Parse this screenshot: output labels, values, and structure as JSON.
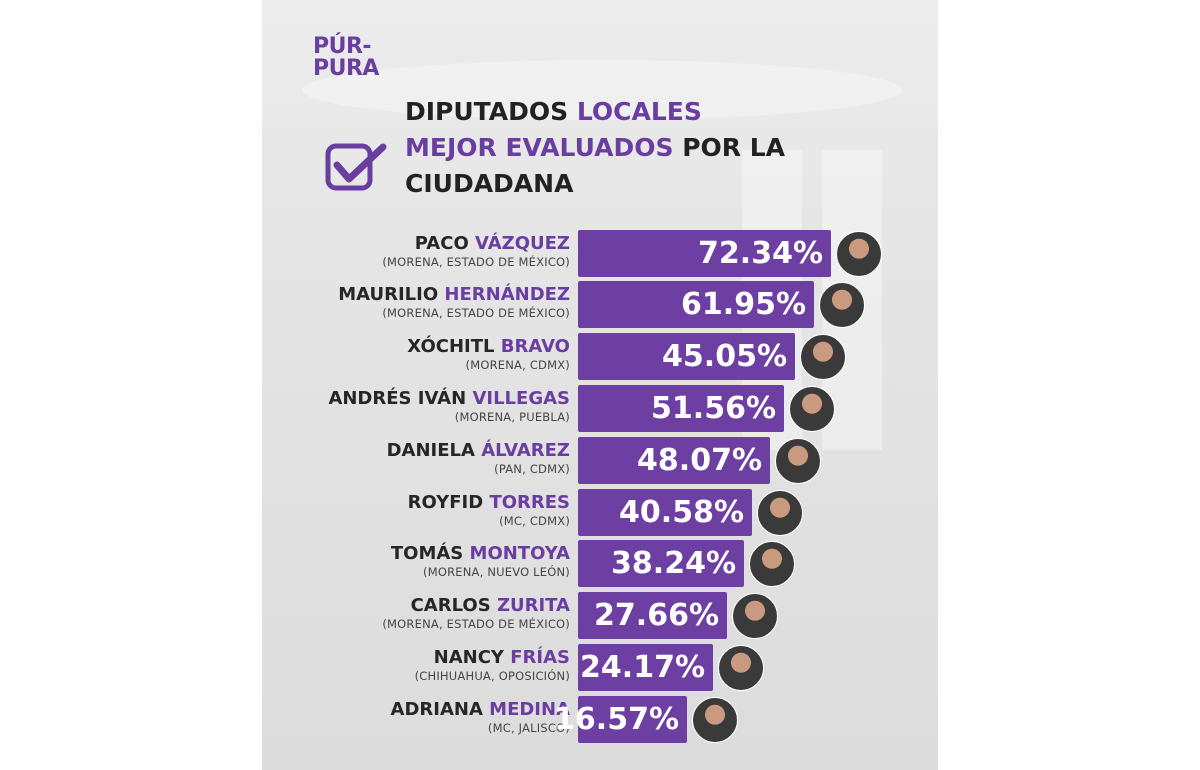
{
  "logo": {
    "line1": "PÚR-",
    "line2": "PURA"
  },
  "title": {
    "part1": "DIPUTADOS ",
    "part2": "LOCALES",
    "part3": "MEJOR EVALUADOS",
    "part4": " POR LA",
    "part5": "CIUDADANA"
  },
  "colors": {
    "accent": "#6d3fa3",
    "text": "#262626",
    "background": "#e4e4e4"
  },
  "icons": {
    "title": "checkbox-check-icon"
  },
  "chart_data": {
    "type": "bar",
    "orientation": "horizontal",
    "title": "DIPUTADOS LOCALES MEJOR EVALUADOS POR LA CIUDADANA",
    "unit": "%",
    "categories": [
      {
        "first": "PACO",
        "last": "VÁZQUEZ",
        "detail": "(MORENA, ESTADO DE MÉXICO)"
      },
      {
        "first": "MAURILIO",
        "last": "HERNÁNDEZ",
        "detail": "(MORENA, ESTADO DE MÉXICO)"
      },
      {
        "first": "XÓCHITL",
        "last": "BRAVO",
        "detail": "(MORENA, CDMX)"
      },
      {
        "first": "ANDRÉS IVÁN",
        "last": "VILLEGAS",
        "detail": "(MORENA, PUEBLA)"
      },
      {
        "first": "DANIELA",
        "last": "ÁLVAREZ",
        "detail": "(PAN, CDMX)"
      },
      {
        "first": "ROYFID",
        "last": "TORRES",
        "detail": "(MC, CDMX)"
      },
      {
        "first": "TOMÁS",
        "last": "MONTOYA",
        "detail": "(MORENA, NUEVO LEÓN)"
      },
      {
        "first": "CARLOS",
        "last": "ZURITA",
        "detail": "(MORENA, ESTADO DE MÉXICO)"
      },
      {
        "first": "NANCY",
        "last": "FRÍAS",
        "detail": "(CHIHUAHUA, OPOSICIÓN)"
      },
      {
        "first": "ADRIANA",
        "last": "MEDINA",
        "detail": "(MC, JALISCO)"
      }
    ],
    "values": [
      72.34,
      61.95,
      45.05,
      51.56,
      48.07,
      40.58,
      38.24,
      27.66,
      24.17,
      16.57
    ],
    "value_labels": [
      "72.34%",
      "61.95%",
      "45.05%",
      "51.56%",
      "48.07%",
      "40.58%",
      "38.24%",
      "27.66%",
      "24.17%",
      "16.57%"
    ],
    "grid": false,
    "legend": "none"
  }
}
